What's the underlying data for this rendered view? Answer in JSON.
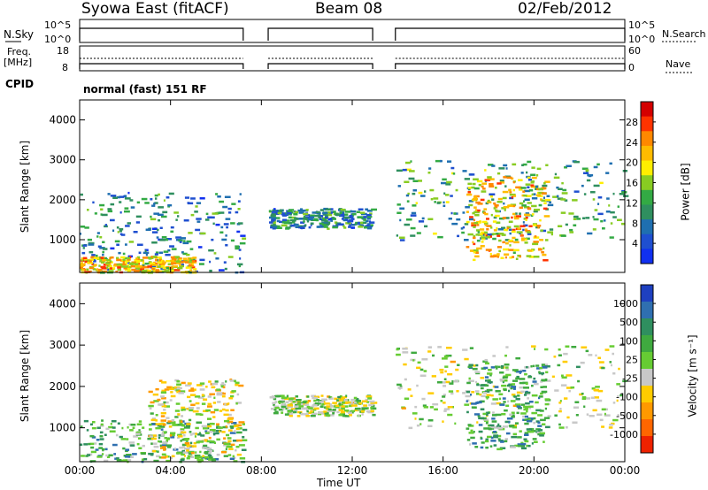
{
  "header": {
    "station": "Syowa East (fitACF)",
    "beam": "Beam 08",
    "date": "02/Feb/2012"
  },
  "panels": {
    "nsky": {
      "label": "N.Sky",
      "ticks": [
        "10^5",
        "10^0"
      ],
      "right_ticks": [
        "10^5",
        "10^0"
      ],
      "right_label": "N.Search"
    },
    "freq": {
      "label_top": "Freq.",
      "label_bottom": "[MHz]",
      "ticks": [
        "18",
        "8"
      ],
      "right_ticks": [
        "60",
        "0"
      ],
      "right_label": "Nave"
    },
    "cpid": {
      "label": "CPID",
      "value": "normal (fast) 151 RF"
    }
  },
  "colorbars": {
    "power": {
      "label": "Power [dB]",
      "ticks": [
        "28",
        "24",
        "20",
        "16",
        "12",
        "8",
        "4"
      ],
      "colors": [
        "#d40000",
        "#ff3300",
        "#ff8800",
        "#ffbb00",
        "#ffee00",
        "#88cc22",
        "#33aa44",
        "#2f8f5f",
        "#1f6fb0",
        "#1f4fd0",
        "#1030f0"
      ]
    },
    "velocity": {
      "label": "Velocity [m s⁻¹]",
      "ticks": [
        "1000",
        "500",
        "100",
        "25",
        "-25",
        "-100",
        "-500",
        "-1000"
      ],
      "colors": [
        "#1e40c0",
        "#2f6fb0",
        "#2f8f5f",
        "#3faa3f",
        "#66cc33",
        "#c8c8c8",
        "#ffcc00",
        "#ff9900",
        "#ff6600",
        "#ee2200"
      ]
    }
  },
  "axes": {
    "xlabel": "Time UT",
    "xticks": [
      "00:00",
      "04:00",
      "08:00",
      "12:00",
      "16:00",
      "20:00",
      "00:00"
    ],
    "ylabel": "Slant Range [km]",
    "yticks": [
      "4000",
      "3000",
      "2000",
      "1000"
    ]
  },
  "chart_data": [
    {
      "type": "heatmap",
      "name": "power",
      "xlabel": "Time UT",
      "ylabel": "Slant Range [km]",
      "xlim": [
        0,
        24
      ],
      "ylim": [
        180,
        4500
      ],
      "colorbar_label": "Power [dB]",
      "colorbar_range": [
        0,
        30
      ],
      "data_gaps_hours": [
        [
          7.2,
          8.3
        ],
        [
          12.9,
          13.9
        ]
      ],
      "echo_regions": [
        {
          "t_start": 0.0,
          "t_end": 7.2,
          "range_km": [
            200,
            2200
          ],
          "dominant_power_db": 8
        },
        {
          "t_start": 0.0,
          "t_end": 5.0,
          "range_km": [
            200,
            600
          ],
          "dominant_power_db": 20
        },
        {
          "t_start": 8.3,
          "t_end": 12.9,
          "range_km": [
            1300,
            1800
          ],
          "dominant_power_db": 8
        },
        {
          "t_start": 13.9,
          "t_end": 24.0,
          "range_km": [
            1000,
            3000
          ],
          "dominant_power_db": 10
        },
        {
          "t_start": 17.0,
          "t_end": 20.5,
          "range_km": [
            500,
            2600
          ],
          "dominant_power_db": 20
        }
      ]
    },
    {
      "type": "heatmap",
      "name": "velocity",
      "xlabel": "Time UT",
      "ylabel": "Slant Range [km]",
      "xlim": [
        0,
        24
      ],
      "ylim": [
        180,
        4500
      ],
      "colorbar_label": "Velocity [m s⁻¹]",
      "colorbar_range": [
        -1000,
        1000
      ],
      "data_gaps_hours": [
        [
          7.2,
          8.3
        ],
        [
          12.9,
          13.9
        ]
      ],
      "echo_regions": [
        {
          "t_start": 0.0,
          "t_end": 7.2,
          "range_km": [
            200,
            1200
          ],
          "dominant_velocity": 300
        },
        {
          "t_start": 3.0,
          "t_end": 7.0,
          "range_km": [
            300,
            2200
          ],
          "dominant_velocity": -200
        },
        {
          "t_start": 8.3,
          "t_end": 12.9,
          "range_km": [
            1300,
            1800
          ],
          "dominant_velocity": 0
        },
        {
          "t_start": 13.9,
          "t_end": 24.0,
          "range_km": [
            1000,
            3000
          ],
          "dominant_velocity": 0
        },
        {
          "t_start": 17.0,
          "t_end": 20.5,
          "range_km": [
            500,
            2600
          ],
          "dominant_velocity": 400
        }
      ]
    }
  ]
}
